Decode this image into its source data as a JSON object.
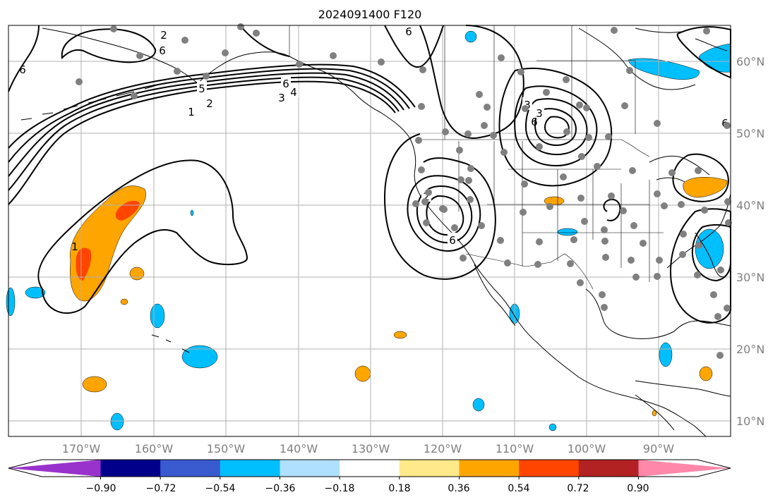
{
  "title": "2024091400 F120",
  "lat_labels": [
    "60°N",
    "50°N",
    "40°N",
    "30°N",
    "20°N",
    "10°N"
  ],
  "lon_labels": [
    "170°W",
    "160°W",
    "150°W",
    "140°W",
    "130°W",
    "120°W",
    "110°W",
    "100°W",
    "90°W"
  ],
  "contour_labels": [
    "1",
    "2",
    "3",
    "4",
    "5",
    "6",
    "6",
    "6",
    "6",
    "3",
    "3",
    "2",
    "2",
    "6",
    "6",
    "1",
    "6"
  ],
  "colorbar": {
    "ticks": [
      "−0.90",
      "−0.72",
      "−0.54",
      "−0.36",
      "−0.18",
      "0.18",
      "0.36",
      "0.54",
      "0.72",
      "0.90"
    ],
    "colors": [
      "#9932cc",
      "#00008b",
      "#3a5bd0",
      "#00bfff",
      "#b0e0ff",
      "#ffffff",
      "#ffe98a",
      "#ffa500",
      "#ff4500",
      "#b22222",
      "#ff88aa"
    ]
  },
  "colors": {
    "station_dot": "#808080",
    "contour": "#000000",
    "grid": "#b0b0b0"
  }
}
